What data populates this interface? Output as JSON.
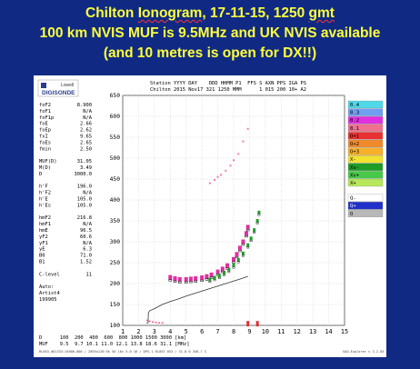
{
  "header": {
    "line1_prefix": "Chilton ",
    "line1_wavy1": "Ionogram",
    "line1_mid": ", 17-11-15, 1250 ",
    "line1_wavy2": "gmt",
    "line2": "100 km NVIS MUF is 9.5MHz and UK NVIS available",
    "line3": "(and 10 metres is open for DX!!)"
  },
  "logo": {
    "top": "Lowell",
    "bottom": "DIGISONDE"
  },
  "station": {
    "row1": "Station YYYY DAY    DDD HHMM P1  FFS S AXN PPS IGA PS",
    "row2": "Chilton 2015 Nov17 321 1250 MMM      1 015 200 10+ A2"
  },
  "params": [
    {
      "name": "foF2",
      "value": "8.900"
    },
    {
      "name": "foF1",
      "value": "N/A"
    },
    {
      "name": "foF1p",
      "value": "N/A"
    },
    {
      "name": "foE",
      "value": "2.66"
    },
    {
      "name": "foEp",
      "value": "2.62"
    },
    {
      "name": "fxI",
      "value": "9.65"
    },
    {
      "name": "foEs",
      "value": "2.65"
    },
    {
      "name": "fmin",
      "value": "2.50"
    },
    {
      "name": "",
      "value": ""
    },
    {
      "name": "MUF(D)",
      "value": "31.05"
    },
    {
      "name": "M(D)",
      "value": "3.49"
    },
    {
      "name": "D",
      "value": "3000.0"
    },
    {
      "name": "",
      "value": ""
    },
    {
      "name": "h'F",
      "value": "196.0"
    },
    {
      "name": "h'F2",
      "value": "N/A"
    },
    {
      "name": "h'E",
      "value": "105.0"
    },
    {
      "name": "h'Es",
      "value": "105.0"
    },
    {
      "name": "",
      "value": ""
    },
    {
      "name": "hmF2",
      "value": "216.8"
    },
    {
      "name": "hmF1",
      "value": "N/A"
    },
    {
      "name": "hmE",
      "value": "96.5"
    },
    {
      "name": "yF2",
      "value": "60.6"
    },
    {
      "name": "yF1",
      "value": "N/A"
    },
    {
      "name": "yE",
      "value": "6.3"
    },
    {
      "name": "B0",
      "value": "71.0"
    },
    {
      "name": "B1",
      "value": "1.52"
    },
    {
      "name": "",
      "value": ""
    },
    {
      "name": "C-level",
      "value": "11"
    },
    {
      "name": "",
      "value": ""
    },
    {
      "name": "Auto:",
      "value": ""
    },
    {
      "name": "Artist4",
      "value": ""
    },
    {
      "name": "199905",
      "value": ""
    }
  ],
  "legend": [
    {
      "label": "0.4",
      "color": "#4fd8e8"
    },
    {
      "label": "0.3",
      "color": "#6f9ff0"
    },
    {
      "label": "0.2",
      "color": "#e030e0"
    },
    {
      "label": "0.1",
      "color": "#f07090"
    },
    {
      "label": "O+1",
      "color": "#e83030"
    },
    {
      "label": "O+2",
      "color": "#f08a2a"
    },
    {
      "label": "O+3",
      "color": "#f7b028"
    },
    {
      "label": "X-",
      "color": "#f3e230"
    },
    {
      "label": "Xv-",
      "color": "#1e9e26"
    },
    {
      "label": "Xv+",
      "color": "#48c848"
    },
    {
      "label": "X+",
      "color": "#b7e85a"
    },
    {
      "label": "Q-",
      "color": "#ffffff"
    },
    {
      "label": "Q+",
      "color": "#2030c8"
    },
    {
      "label": "O",
      "color": "#b8b8b8"
    }
  ],
  "footer": {
    "row1": "D      100  200  400  600  800 1000 1500 3000 [km]",
    "row2": "MUF    9.5  9.7 10.1 11.0 12.1 13.8 18.6 31.1 [MHz]",
    "row3": "RL053_061333:15000.000 / 2895x128:5k 50 16x 5.0 16 / DPS-1 RL053 053 / 31.8 0 358.7 S",
    "row3_right": "SAO-Explorer v 3.2.03"
  },
  "chart_data": {
    "type": "scatter",
    "title": "",
    "xlabel": "",
    "ylabel": "",
    "xlim": [
      1,
      15
    ],
    "ylim": [
      100,
      650
    ],
    "x_ticks": [
      1,
      2,
      3,
      4,
      5,
      6,
      7,
      8,
      9,
      10,
      11,
      12,
      13,
      14,
      15
    ],
    "y_ticks": [
      100,
      150,
      200,
      250,
      300,
      350,
      400,
      450,
      500,
      550,
      600,
      650
    ],
    "profile_line": {
      "x": [
        2.5,
        2.6,
        2.62,
        2.7,
        3,
        3.5,
        4,
        4.5,
        5,
        5.5,
        6,
        6.5,
        7,
        7.5,
        8,
        8.5,
        8.9
      ],
      "y": [
        105,
        106,
        130,
        135,
        140,
        150,
        157,
        163,
        170,
        176,
        182,
        188,
        194,
        200,
        206,
        212,
        217
      ]
    },
    "o_trace": {
      "x": [
        4.0,
        4.3,
        4.6,
        5.0,
        5.3,
        5.6,
        6.0,
        6.3,
        6.6,
        7.0,
        7.3,
        7.6,
        8.0,
        8.2,
        8.4,
        8.6,
        8.8,
        8.9
      ],
      "y": [
        215,
        212,
        210,
        210,
        211,
        212,
        214,
        217,
        221,
        228,
        235,
        243,
        258,
        270,
        285,
        300,
        320,
        335
      ]
    },
    "x_trace": {
      "x": [
        6.5,
        6.8,
        7.1,
        7.4,
        7.7,
        8.0,
        8.3,
        8.6,
        8.9,
        9.1,
        9.3,
        9.5,
        9.6
      ],
      "y": [
        210,
        214,
        219,
        226,
        234,
        244,
        257,
        272,
        292,
        308,
        328,
        350,
        370
      ]
    },
    "multihop_o": {
      "x": [
        6.5,
        6.8,
        7.0,
        7.2,
        7.5,
        7.8,
        8.0,
        8.3,
        8.6,
        8.9
      ],
      "y": [
        440,
        448,
        455,
        460,
        470,
        482,
        495,
        510,
        540,
        570
      ]
    },
    "es_trace": {
      "x": [
        2.55,
        2.7,
        2.9,
        3.1,
        3.3,
        3.5
      ],
      "y": [
        112,
        110,
        108,
        107,
        106,
        106
      ]
    },
    "muf_marker": {
      "x": 9.5,
      "y": 104
    },
    "foF2_marker": {
      "x": 8.9,
      "y": 104
    }
  }
}
